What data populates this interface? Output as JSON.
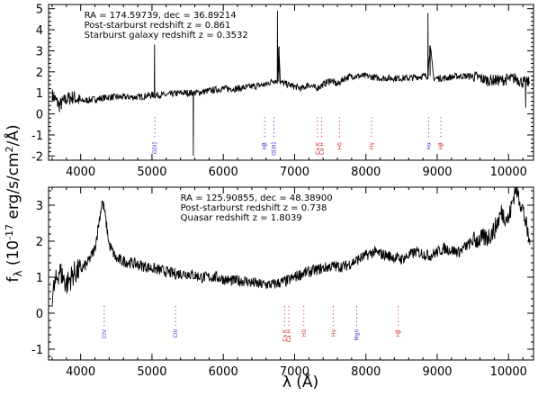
{
  "chart_data": [
    {
      "type": "line",
      "x": [
        3600,
        3700,
        3800,
        3900,
        4000,
        4200,
        4400,
        4600,
        4800,
        5000,
        5036,
        5060,
        5200,
        5400,
        5550,
        5580,
        5610,
        5800,
        6000,
        6200,
        6400,
        6600,
        6700,
        6760,
        6780,
        6800,
        6900,
        7000,
        7100,
        7200,
        7300,
        7400,
        7500,
        7600,
        7700,
        7800,
        8000,
        8200,
        8400,
        8600,
        8800,
        8870,
        8900,
        8950,
        9100,
        9300,
        9500,
        9700,
        9900,
        10100,
        10200,
        10240,
        10300
      ],
      "series": [
        {
          "values": [
            0.9,
            0.4,
            0.7,
            0.8,
            0.6,
            0.7,
            0.8,
            0.8,
            0.8,
            0.9,
            3.3,
            0.9,
            0.9,
            1.0,
            1.0,
            -2.0,
            1.0,
            1.1,
            1.2,
            1.2,
            1.3,
            1.4,
            1.6,
            4.9,
            1.5,
            1.5,
            1.4,
            1.3,
            1.2,
            1.4,
            1.2,
            1.4,
            1.6,
            1.4,
            1.7,
            1.8,
            1.8,
            1.7,
            1.7,
            1.7,
            1.8,
            4.8,
            1.8,
            1.7,
            1.7,
            1.8,
            1.8,
            1.6,
            1.6,
            1.7,
            1.5,
            0.3,
            1.5
          ]
        }
      ],
      "xlim": [
        3550,
        10350
      ],
      "ylim": [
        -2.2,
        5.2
      ],
      "xticks": [
        "4000",
        "5000",
        "6000",
        "7000",
        "8000",
        "9000",
        "10000"
      ],
      "yticks": [
        "-2",
        "-1",
        "0",
        "1",
        "2",
        "3",
        "4",
        "5"
      ],
      "annotations": [
        "RA = 174.59739, dec = 36.89214",
        "Post-starburst redshift z = 0.861",
        "Starburst galaxy redshift z = 0.3532"
      ],
      "line_labels": [
        {
          "x": 5040,
          "text": "O[II]",
          "color": "#3333cc"
        },
        {
          "x": 6580,
          "text": "Hβ",
          "color": "#3333cc"
        },
        {
          "x": 6710,
          "text": "O[III]",
          "color": "#3333cc"
        },
        {
          "x": 7320,
          "text": "Ca K",
          "color": "#cc2222"
        },
        {
          "x": 7380,
          "text": "Ca H",
          "color": "#cc2222"
        },
        {
          "x": 7630,
          "text": "Hδ",
          "color": "#cc2222"
        },
        {
          "x": 8080,
          "text": "Hγ",
          "color": "#cc2222"
        },
        {
          "x": 8880,
          "text": "Hα",
          "color": "#3333cc"
        },
        {
          "x": 9050,
          "text": "Hβ",
          "color": "#cc2222"
        }
      ]
    },
    {
      "type": "line",
      "x": [
        3600,
        3700,
        3800,
        3900,
        4000,
        4100,
        4200,
        4300,
        4330,
        4400,
        4500,
        4700,
        4900,
        5100,
        5300,
        5500,
        5700,
        5900,
        6100,
        6300,
        6500,
        6700,
        6900,
        7100,
        7300,
        7500,
        7700,
        7900,
        8100,
        8300,
        8500,
        8700,
        8900,
        9100,
        9300,
        9500,
        9700,
        9800,
        9900,
        10000,
        10100,
        10200,
        10300
      ],
      "series": [
        {
          "values": [
            0.5,
            1.2,
            0.8,
            1.1,
            1.2,
            1.4,
            1.8,
            3.1,
            2.9,
            1.9,
            1.5,
            1.4,
            1.3,
            1.2,
            1.1,
            1.1,
            1.0,
            1.0,
            0.9,
            0.9,
            0.8,
            0.8,
            0.9,
            1.1,
            1.2,
            1.3,
            1.3,
            1.5,
            1.7,
            1.6,
            1.5,
            1.7,
            1.6,
            1.8,
            1.7,
            2.0,
            2.1,
            2.3,
            2.8,
            2.6,
            3.5,
            2.9,
            1.9
          ]
        }
      ],
      "xlim": [
        3550,
        10350
      ],
      "ylim": [
        -1.3,
        3.5
      ],
      "xticks": [
        "4000",
        "5000",
        "6000",
        "7000",
        "8000",
        "9000",
        "10000"
      ],
      "yticks": [
        "-1",
        "0",
        "1",
        "2",
        "3"
      ],
      "annotations": [
        "RA = 125.90855, dec = 48.38900",
        "Post-starburst redshift z = 0.738",
        "Quasar redshift z = 1.8039"
      ],
      "line_labels": [
        {
          "x": 4330,
          "text": "CIV",
          "color": "#3333cc"
        },
        {
          "x": 5330,
          "text": "CIII",
          "color": "#3333cc"
        },
        {
          "x": 6860,
          "text": "Ca K",
          "color": "#cc2222"
        },
        {
          "x": 6920,
          "text": "Ca H",
          "color": "#cc2222"
        },
        {
          "x": 7130,
          "text": "Hδ",
          "color": "#cc2222"
        },
        {
          "x": 7540,
          "text": "Hγ",
          "color": "#cc2222"
        },
        {
          "x": 7870,
          "text": "MgII",
          "color": "#3333cc"
        },
        {
          "x": 8450,
          "text": "Hβ",
          "color": "#cc2222"
        }
      ]
    }
  ],
  "axis": {
    "ylabel": "f_λ (10^-17 erg/s/cm^2/Å)",
    "ylabel_main": "f",
    "ylabel_sub": "λ",
    "ylabel_rest": " (10",
    "ylabel_exp": "-17",
    "ylabel_tail": " erg/s/cm",
    "ylabel_exp2": "2",
    "ylabel_end": "/Å)",
    "xlabel": "λ (Å)"
  },
  "colors": {
    "blue_line": "#3333cc",
    "red_line": "#cc2222",
    "spectrum": "#000000"
  }
}
